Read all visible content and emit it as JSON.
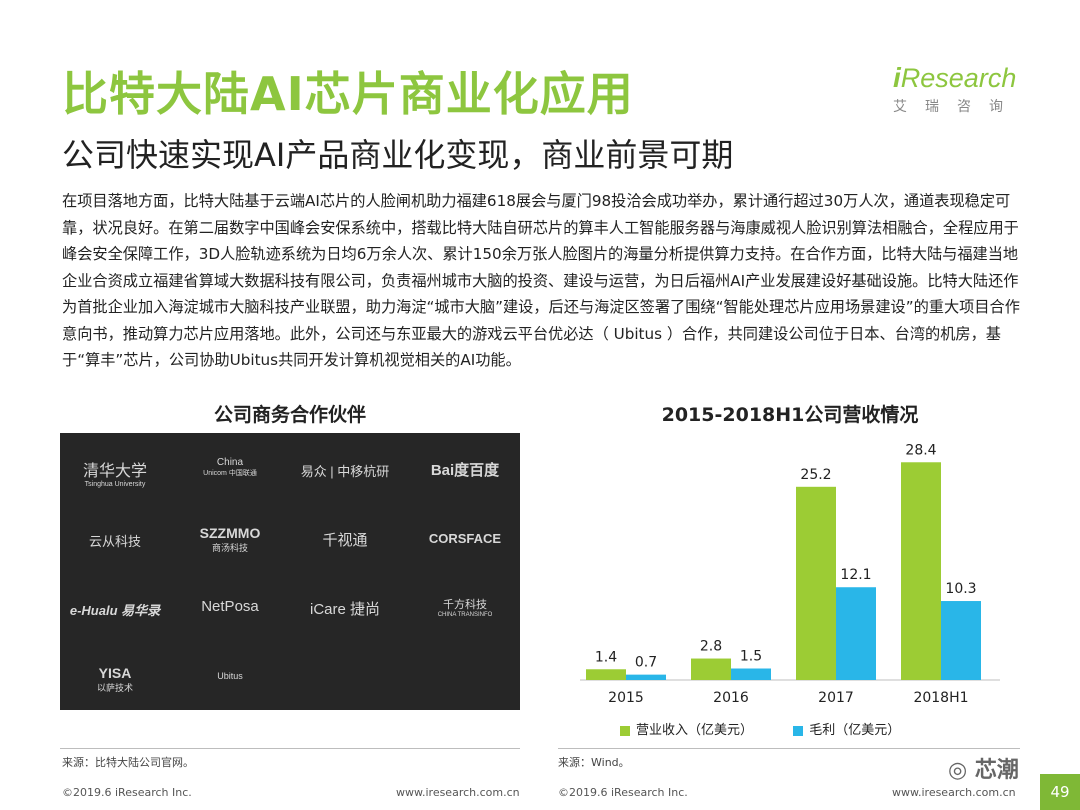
{
  "header": {
    "title": "比特大陆AI芯片商业化应用",
    "subtitle": "公司快速实现AI产品商业化变现，商业前景可期",
    "logo_text_i": "i",
    "logo_text_rest": "Research",
    "logo_sub": "艾瑞咨询"
  },
  "body": {
    "paragraph": "在项目落地方面，比特大陆基于云端AI芯片的人脸闸机助力福建618展会与厦门98投洽会成功举办，累计通行超过30万人次，通道表现稳定可靠，状况良好。在第二届数字中国峰会安保系统中，搭载比特大陆自研芯片的算丰人工智能服务器与海康威视人脸识别算法相融合，全程应用于峰会安全保障工作，3D人脸轨迹系统为日均6万余人次、累计150余万张人脸图片的海量分析提供算力支持。在合作方面，比特大陆与福建当地企业合资成立福建省算域大数据科技有限公司，负责福州城市大脑的投资、建设与运营，为日后福州AI产业发展建设好基础设施。比特大陆还作为首批企业加入海淀城市大脑科技产业联盟，助力海淀“城市大脑”建设，后还与海淀区签署了围绕“智能处理芯片应用场景建设”的重大项目合作意向书，推动算力芯片应用落地。此外，公司还与东亚最大的游戏云平台优必达（ Ubitus ）合作，共同建设公司位于日本、台湾的机房，基于“算丰”芯片，公司协助Ubitus共同开发计算机视觉相关的AI功能。"
  },
  "partners": {
    "heading": "公司商务合作伙伴",
    "logos": [
      {
        "label": "清华大学",
        "sub": "Tsinghua University"
      },
      {
        "label": "China",
        "sub": "Unicom 中国联通"
      },
      {
        "label": "易众 | 中移杭研",
        "sub": ""
      },
      {
        "label": "Bai度百度",
        "sub": ""
      },
      {
        "label": "云从科技",
        "sub": ""
      },
      {
        "label": "SZZMMO",
        "sub": "商汤科技"
      },
      {
        "label": "千视通",
        "sub": ""
      },
      {
        "label": "CORSFACE",
        "sub": ""
      },
      {
        "label": "e-Hualu 易华录",
        "sub": ""
      },
      {
        "label": "NetPosa",
        "sub": ""
      },
      {
        "label": "iCare 捷尚",
        "sub": ""
      },
      {
        "label": "千方科技",
        "sub": "CHINA TRANSINFO"
      },
      {
        "label": "YISA",
        "sub": "以萨技术"
      },
      {
        "label": "Ubitus",
        "sub": ""
      }
    ],
    "source": "来源：比特大陆公司官网。"
  },
  "chart_data": {
    "type": "bar",
    "title": "2015-2018H1公司营收情况",
    "categories": [
      "2015",
      "2016",
      "2017",
      "2018H1"
    ],
    "series": [
      {
        "name": "营业收入（亿美元）",
        "values": [
          1.4,
          2.8,
          25.2,
          28.4
        ],
        "color": "#9ccc34"
      },
      {
        "name": "毛利（亿美元）",
        "values": [
          0.7,
          1.5,
          12.1,
          10.3
        ],
        "color": "#29b6e8"
      }
    ],
    "value_labels": {
      "s0": [
        "1.4",
        "2.8",
        "25.2",
        "28.4"
      ],
      "s1": [
        "0.7",
        "1.5",
        "12.1",
        "10.3"
      ]
    },
    "ylim": [
      0,
      30
    ],
    "grid": false,
    "legend": "bottom",
    "source": "来源：Wind。"
  },
  "footer": {
    "left_copyright": "©2019.6 iResearch Inc.",
    "left_url": "www.iresearch.com.cn",
    "right_copyright": "©2019.6 iResearch Inc.",
    "right_url": "www.iresearch.com.cn",
    "page_number": "49",
    "watermark": "芯潮"
  }
}
